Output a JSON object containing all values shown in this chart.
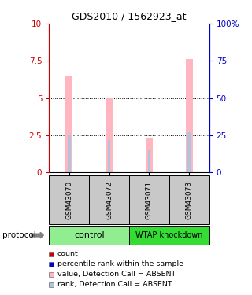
{
  "title": "GDS2010 / 1562923_at",
  "samples": [
    "GSM43070",
    "GSM43072",
    "GSM43071",
    "GSM43073"
  ],
  "groups": [
    "control",
    "control",
    "WTAP knockdown",
    "WTAP knockdown"
  ],
  "group_colors": [
    "#90EE90",
    "#33DD33"
  ],
  "bar_values": [
    6.5,
    5.0,
    2.3,
    7.6
  ],
  "rank_values": [
    2.5,
    2.2,
    1.5,
    2.7
  ],
  "ylim": [
    0,
    10
  ],
  "y_ticks": [
    0,
    2.5,
    5.0,
    7.5,
    10
  ],
  "y_tick_labels": [
    "0",
    "2.5",
    "5",
    "7.5",
    "10"
  ],
  "y2_tick_labels": [
    "0",
    "25",
    "50",
    "75",
    "100%"
  ],
  "bar_color_absent": "#FFB6C1",
  "rank_color_absent": "#B0C4DE",
  "left_axis_color": "#CC0000",
  "right_axis_color": "#0000CC",
  "sample_box_color": "#C8C8C8",
  "legend_items": [
    {
      "color": "#CC0000",
      "label": "count"
    },
    {
      "color": "#0000CC",
      "label": "percentile rank within the sample"
    },
    {
      "color": "#FFB6C1",
      "label": "value, Detection Call = ABSENT"
    },
    {
      "color": "#B0C4DE",
      "label": "rank, Detection Call = ABSENT"
    }
  ],
  "protocol_label": "protocol",
  "pink_bar_width": 0.18,
  "blue_bar_width": 0.07
}
